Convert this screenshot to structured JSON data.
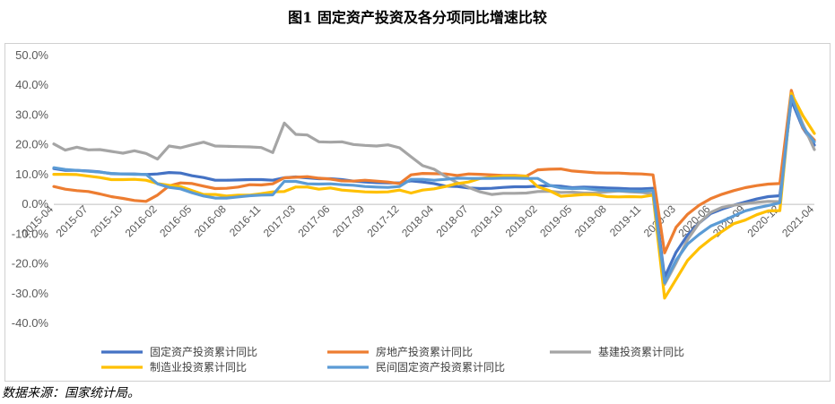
{
  "title": "图1  固定资产投资及各分项同比增速比较",
  "source": "数据来源：国家统计局。",
  "chart_data": {
    "type": "line",
    "title": "图1  固定资产投资及各分项同比增速比较",
    "xlabel": "",
    "ylabel": "",
    "ylim": [
      -40,
      50
    ],
    "y_ticks": [
      "50.0%",
      "40.0%",
      "30.0%",
      "20.0%",
      "10.0%",
      "0.0%",
      "-10.0%",
      "-20.0%",
      "-30.0%",
      "-40.0%"
    ],
    "y_tick_values": [
      50,
      40,
      30,
      20,
      10,
      0,
      -10,
      -20,
      -30,
      -40
    ],
    "x_tick_labels": [
      "2015-04",
      "2015-07",
      "2015-10",
      "2016-02",
      "2016-05",
      "2016-08",
      "2016-11",
      "2017-03",
      "2017-06",
      "2017-09",
      "2017-12",
      "2018-04",
      "2018-07",
      "2018-10",
      "2019-02",
      "2019-05",
      "2019-08",
      "2019-11",
      "2020-03",
      "2020-06",
      "2020-09",
      "2020-12",
      "2021-04"
    ],
    "x_tick_index": [
      0,
      3,
      6,
      9,
      12,
      15,
      18,
      21,
      24,
      27,
      30,
      33,
      36,
      39,
      42,
      45,
      48,
      51,
      54,
      57,
      60,
      63,
      66
    ],
    "grid": false,
    "legend_position": "bottom",
    "x": [
      "2015-04",
      "2015-05",
      "2015-06",
      "2015-07",
      "2015-08",
      "2015-09",
      "2015-10",
      "2015-11",
      "2015-12",
      "2016-02",
      "2016-03",
      "2016-04",
      "2016-05",
      "2016-06",
      "2016-07",
      "2016-08",
      "2016-09",
      "2016-10",
      "2016-11",
      "2016-12",
      "2017-02",
      "2017-03",
      "2017-04",
      "2017-05",
      "2017-06",
      "2017-07",
      "2017-08",
      "2017-09",
      "2017-10",
      "2017-11",
      "2017-12",
      "2018-02",
      "2018-03",
      "2018-04",
      "2018-05",
      "2018-06",
      "2018-07",
      "2018-08",
      "2018-09",
      "2018-10",
      "2018-11",
      "2018-12",
      "2019-02",
      "2019-03",
      "2019-04",
      "2019-05",
      "2019-06",
      "2019-07",
      "2019-08",
      "2019-09",
      "2019-10",
      "2019-11",
      "2019-12",
      "2020-02",
      "2020-03",
      "2020-04",
      "2020-05",
      "2020-06",
      "2020-07",
      "2020-08",
      "2020-09",
      "2020-10",
      "2020-11",
      "2020-12",
      "2021-02",
      "2021-03",
      "2021-04"
    ],
    "series": [
      {
        "name": "固定资产投资累计同比",
        "color": "#4472c4",
        "values": [
          12,
          11.4,
          11.4,
          11.2,
          10.9,
          10.3,
          10.2,
          10.2,
          10,
          10.2,
          10.7,
          10.5,
          9.6,
          9,
          8.1,
          8.1,
          8.2,
          8.3,
          8.3,
          8.1,
          8.9,
          9.2,
          8.9,
          8.6,
          8.6,
          8.3,
          7.8,
          7.5,
          7.3,
          7.2,
          7.2,
          7.9,
          7.5,
          7,
          6.1,
          6,
          5.5,
          5.3,
          5.4,
          5.7,
          5.9,
          5.9,
          6.1,
          6.3,
          6.1,
          5.6,
          5.8,
          5.7,
          5.5,
          5.4,
          5.2,
          5.2,
          5.4,
          -24.5,
          -16.1,
          -10.3,
          -6.3,
          -3.1,
          -1.6,
          -0.3,
          0.8,
          1.8,
          2.6,
          2.9,
          35,
          25.6,
          19.9
        ]
      },
      {
        "name": "房地产投资累计同比",
        "color": "#ed7d31",
        "values": [
          6,
          5.1,
          4.6,
          4.3,
          3.5,
          2.6,
          2,
          1.3,
          1,
          3.1,
          6.2,
          7.2,
          7,
          6.1,
          5.3,
          5.4,
          5.8,
          6.6,
          6.5,
          6.9,
          8.9,
          9.1,
          9.3,
          8.8,
          8.5,
          7.9,
          7.8,
          8.1,
          7.8,
          7.5,
          7,
          9.9,
          10.4,
          10.3,
          10.2,
          9.7,
          10.2,
          10.1,
          9.9,
          9.7,
          9.7,
          9.5,
          11.6,
          11.8,
          11.9,
          11.2,
          10.9,
          10.6,
          10.5,
          10.5,
          10.3,
          10.2,
          9.9,
          -16.3,
          -7.7,
          -3.3,
          -0.3,
          1.9,
          3.4,
          4.6,
          5.6,
          6.3,
          6.8,
          7,
          38.3,
          25.6,
          21.6
        ]
      },
      {
        "name": "基建投资累计同比",
        "color": "#a5a5a5",
        "values": [
          20.3,
          18.2,
          19.2,
          18.3,
          18.4,
          17.8,
          17.2,
          18,
          17.1,
          15.2,
          19.6,
          19,
          20,
          20.9,
          19.6,
          19.5,
          19.4,
          19.3,
          19.1,
          17.4,
          27.3,
          23.5,
          23.3,
          21,
          20.9,
          21,
          20.1,
          19.8,
          19.6,
          20,
          19,
          16,
          13,
          11.8,
          9.4,
          7.3,
          5.7,
          4.2,
          3.3,
          3.7,
          3.7,
          3.8,
          4.3,
          4.4,
          4,
          4.1,
          3.8,
          3.8,
          4.2,
          4.5,
          4.2,
          4,
          3.5,
          -26.9,
          -19.7,
          -11.8,
          -6.3,
          -2.7,
          -1.0,
          -0.3,
          0.2,
          0.7,
          1.0,
          0.9,
          36.6,
          26.9,
          18.4
        ]
      },
      {
        "name": "制造业投资累计同比",
        "color": "#ffc000",
        "values": [
          10.1,
          10.1,
          10,
          9.5,
          9,
          8.3,
          8.3,
          8.4,
          8.1,
          7,
          6.4,
          6,
          4.6,
          3.3,
          3.3,
          2.8,
          3.1,
          3.1,
          3.6,
          4.2,
          4.3,
          5.8,
          5.8,
          5.1,
          5.5,
          4.8,
          4.5,
          4.2,
          4.1,
          4.2,
          4.8,
          3.8,
          4.8,
          5.2,
          6,
          7,
          7.5,
          8.7,
          9.1,
          9.5,
          9.5,
          9.5,
          5.9,
          4.6,
          2.7,
          3,
          3.3,
          3.3,
          2.6,
          2.5,
          2.6,
          2.5,
          3.1,
          -31.5,
          -25.2,
          -18.8,
          -14.8,
          -11.7,
          -9.1,
          -6.5,
          -5.3,
          -3.5,
          -2.2,
          -2.1,
          37.3,
          29.8,
          23.8
        ]
      },
      {
        "name": "民间固定资产投资累计同比",
        "color": "#5b9bd5",
        "values": [
          12.3,
          11.7,
          11.4,
          11.1,
          10.8,
          10.4,
          10.2,
          10.1,
          10.1,
          6.9,
          5.7,
          5.2,
          3.9,
          2.8,
          2.1,
          2.1,
          2.5,
          2.9,
          3.1,
          3.2,
          7.7,
          7.7,
          6.9,
          6.8,
          6.9,
          6.6,
          6.4,
          6,
          5.8,
          5.7,
          6,
          8.4,
          8.4,
          8.1,
          8.4,
          8.8,
          8.7,
          8.7,
          8.7,
          8.8,
          8.8,
          8.7,
          8.7,
          6.4,
          5.5,
          5.3,
          5.4,
          4.9,
          4.7,
          4.6,
          4.5,
          4.4,
          4.7,
          -26.4,
          -18.8,
          -13.3,
          -10.1,
          -7.3,
          -5.7,
          -3.9,
          -2.2,
          -1.2,
          -0.4,
          0.5,
          36.4,
          26,
          21
        ]
      }
    ]
  }
}
